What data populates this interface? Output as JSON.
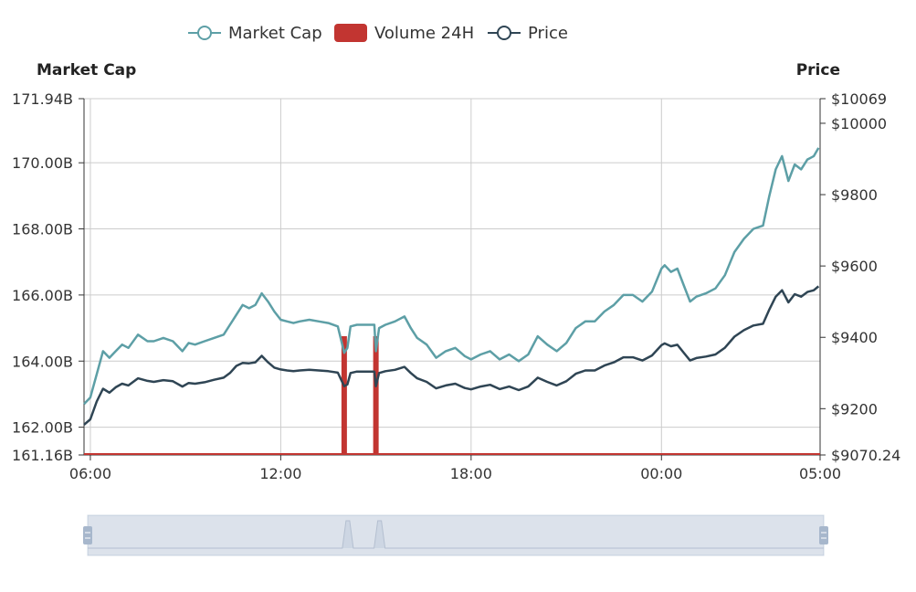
{
  "chart_data": {
    "type": "line",
    "legend": [
      "Market Cap",
      "Volume 24H",
      "Price"
    ],
    "legend_position": "top-center",
    "grid": true,
    "x_axis": {
      "type": "time",
      "ticks": [
        "06:00",
        "12:00",
        "18:00",
        "00:00",
        "05:00"
      ],
      "range": [
        5.8,
        29.0
      ]
    },
    "y_left": {
      "name": "Market Cap",
      "unit": "B",
      "range": [
        161.16,
        171.94
      ],
      "ticks": [
        "171.94B",
        "170.00B",
        "168.00B",
        "166.00B",
        "164.00B",
        "162.00B",
        "161.16B"
      ]
    },
    "y_right": {
      "name": "Price",
      "unit": "$",
      "range": [
        9070.24,
        10069
      ],
      "ticks": [
        "$10069",
        "$10000",
        "$9800",
        "$9600",
        "$9400",
        "$9200",
        "$9070.24"
      ]
    },
    "series": [
      {
        "name": "Market Cap",
        "color": "#5d9fa6",
        "x": [
          5.8,
          6.0,
          6.2,
          6.4,
          6.6,
          6.8,
          7.0,
          7.2,
          7.5,
          7.8,
          8.0,
          8.3,
          8.6,
          8.9,
          9.1,
          9.3,
          9.6,
          9.9,
          10.2,
          10.4,
          10.6,
          10.8,
          11.0,
          11.2,
          11.4,
          11.6,
          11.8,
          12.0,
          12.2,
          12.4,
          12.6,
          12.9,
          13.2,
          13.5,
          13.8,
          14.0,
          14.1,
          14.2,
          14.4,
          14.7,
          14.95,
          15.0,
          15.1,
          15.3,
          15.6,
          15.9,
          16.1,
          16.3,
          16.6,
          16.9,
          17.2,
          17.5,
          17.8,
          18.0,
          18.3,
          18.6,
          18.9,
          19.2,
          19.5,
          19.8,
          20.1,
          20.4,
          20.7,
          21.0,
          21.3,
          21.6,
          21.9,
          22.2,
          22.5,
          22.8,
          23.1,
          23.4,
          23.7,
          24.0,
          24.1,
          24.3,
          24.5,
          24.7,
          24.9,
          25.1,
          25.4,
          25.7,
          26.0,
          26.3,
          26.6,
          26.9,
          27.2,
          27.4,
          27.6,
          27.8,
          28.0,
          28.2,
          28.4,
          28.6,
          28.8,
          28.95
        ],
        "y": [
          162.7,
          162.9,
          163.6,
          164.3,
          164.1,
          164.3,
          164.5,
          164.4,
          164.8,
          164.6,
          164.6,
          164.7,
          164.6,
          164.3,
          164.55,
          164.5,
          164.6,
          164.7,
          164.8,
          165.1,
          165.4,
          165.7,
          165.6,
          165.7,
          166.05,
          165.8,
          165.5,
          165.25,
          165.2,
          165.15,
          165.2,
          165.25,
          165.2,
          165.15,
          165.05,
          164.25,
          164.4,
          165.05,
          165.1,
          165.1,
          165.1,
          164.3,
          165.0,
          165.1,
          165.2,
          165.35,
          165.0,
          164.7,
          164.5,
          164.1,
          164.3,
          164.4,
          164.15,
          164.05,
          164.2,
          164.3,
          164.05,
          164.2,
          164.0,
          164.2,
          164.75,
          164.5,
          164.3,
          164.55,
          165.0,
          165.2,
          165.2,
          165.5,
          165.7,
          166.0,
          166.0,
          165.8,
          166.1,
          166.8,
          166.9,
          166.7,
          166.8,
          166.3,
          165.8,
          165.95,
          166.05,
          166.2,
          166.6,
          167.3,
          167.7,
          168.0,
          168.1,
          169.0,
          169.8,
          170.2,
          169.45,
          169.95,
          169.8,
          170.1,
          170.2,
          170.45
        ]
      },
      {
        "name": "Price",
        "color": "#2f4554",
        "x": [
          5.8,
          6.0,
          6.2,
          6.4,
          6.6,
          6.8,
          7.0,
          7.2,
          7.5,
          7.8,
          8.0,
          8.3,
          8.6,
          8.9,
          9.1,
          9.3,
          9.6,
          9.9,
          10.2,
          10.4,
          10.6,
          10.8,
          11.0,
          11.2,
          11.4,
          11.6,
          11.8,
          12.0,
          12.2,
          12.4,
          12.6,
          12.9,
          13.2,
          13.5,
          13.8,
          14.0,
          14.1,
          14.2,
          14.4,
          14.7,
          14.95,
          15.0,
          15.1,
          15.3,
          15.6,
          15.9,
          16.1,
          16.3,
          16.6,
          16.9,
          17.2,
          17.5,
          17.8,
          18.0,
          18.3,
          18.6,
          18.9,
          19.2,
          19.5,
          19.8,
          20.1,
          20.4,
          20.7,
          21.0,
          21.3,
          21.6,
          21.9,
          22.2,
          22.5,
          22.8,
          23.1,
          23.4,
          23.7,
          24.0,
          24.1,
          24.3,
          24.5,
          24.7,
          24.9,
          25.1,
          25.4,
          25.7,
          26.0,
          26.3,
          26.6,
          26.9,
          27.2,
          27.4,
          27.6,
          27.8,
          28.0,
          28.2,
          28.4,
          28.6,
          28.8,
          28.95
        ],
        "y": [
          9155,
          9170,
          9220,
          9256,
          9245,
          9260,
          9270,
          9265,
          9285,
          9278,
          9275,
          9280,
          9277,
          9262,
          9272,
          9270,
          9274,
          9281,
          9287,
          9300,
          9320,
          9328,
          9327,
          9330,
          9348,
          9330,
          9315,
          9310,
          9307,
          9305,
          9307,
          9309,
          9307,
          9305,
          9301,
          9263,
          9268,
          9300,
          9304,
          9304,
          9304,
          9263,
          9300,
          9305,
          9309,
          9317,
          9300,
          9285,
          9275,
          9257,
          9265,
          9270,
          9258,
          9254,
          9262,
          9267,
          9255,
          9262,
          9252,
          9262,
          9287,
          9275,
          9265,
          9277,
          9298,
          9307,
          9307,
          9321,
          9330,
          9344,
          9344,
          9335,
          9349,
          9378,
          9383,
          9375,
          9379,
          9357,
          9335,
          9342,
          9346,
          9352,
          9371,
          9402,
          9420,
          9433,
          9438,
          9478,
          9514,
          9532,
          9498,
          9521,
          9514,
          9527,
          9532,
          9543
        ]
      },
      {
        "name": "Volume 24H",
        "type": "bar",
        "color": "#c23531",
        "spikes": [
          {
            "x": 14.0,
            "value": 1
          },
          {
            "x": 15.0,
            "value": 1
          }
        ]
      }
    ]
  },
  "data_zoom": {
    "start": 0,
    "end": 100
  }
}
